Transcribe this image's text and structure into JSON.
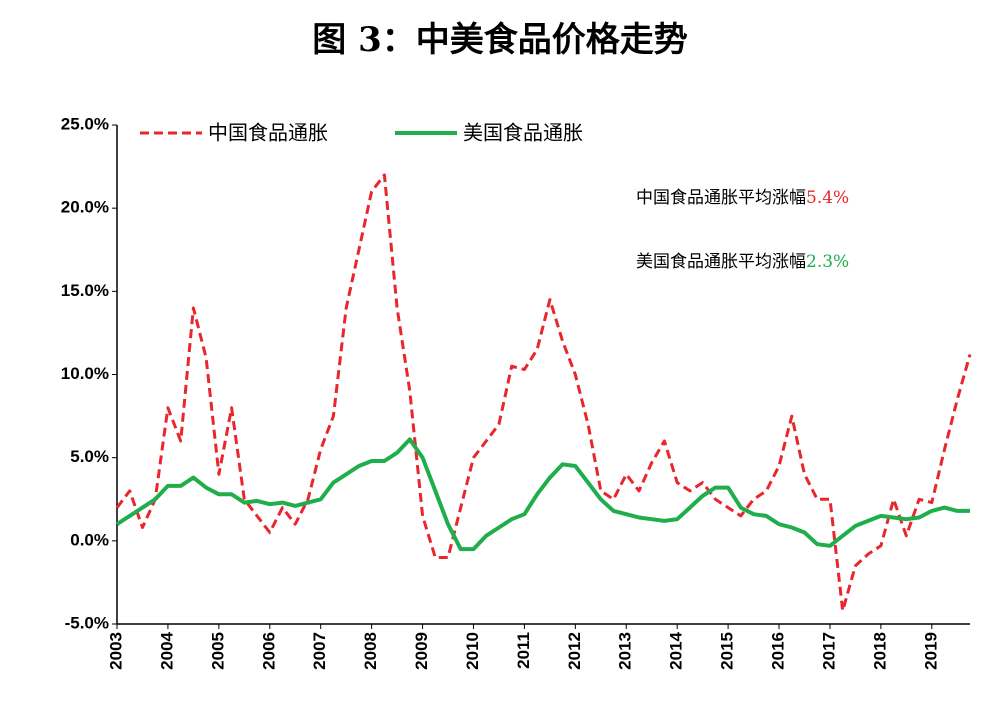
{
  "chart_data": {
    "type": "line",
    "title": "图 3：中美食品价格走势",
    "x": [
      2003,
      2003.25,
      2003.5,
      2003.75,
      2004,
      2004.25,
      2004.5,
      2004.75,
      2005,
      2005.25,
      2005.5,
      2005.75,
      2006,
      2006.25,
      2006.5,
      2006.75,
      2007,
      2007.25,
      2007.5,
      2007.75,
      2008,
      2008.25,
      2008.5,
      2008.75,
      2009,
      2009.25,
      2009.5,
      2009.75,
      2010,
      2010.25,
      2010.5,
      2010.75,
      2011,
      2011.25,
      2011.5,
      2011.75,
      2012,
      2012.25,
      2012.5,
      2012.75,
      2013,
      2013.25,
      2013.5,
      2013.75,
      2014,
      2014.25,
      2014.5,
      2014.75,
      2015,
      2015.25,
      2015.5,
      2015.75,
      2016,
      2016.25,
      2016.5,
      2016.75,
      2017,
      2017.25,
      2017.5,
      2017.75,
      2018,
      2018.25,
      2018.5,
      2018.75,
      2019,
      2019.25,
      2019.5,
      2019.75
    ],
    "series": [
      {
        "name": "中国食品通胀",
        "color": "#e8262b",
        "dash": true,
        "values": [
          2.0,
          3.0,
          0.8,
          2.5,
          8.0,
          6.0,
          14.0,
          11.0,
          4.0,
          8.0,
          2.5,
          1.5,
          0.5,
          2.0,
          1.0,
          2.5,
          5.5,
          7.5,
          14.0,
          17.5,
          21.0,
          22.0,
          14.0,
          9.0,
          1.5,
          -1.0,
          -1.0,
          2.0,
          5.0,
          6.0,
          7.0,
          10.5,
          10.3,
          11.5,
          14.5,
          12.0,
          10.0,
          7.0,
          3.0,
          2.5,
          4.0,
          3.0,
          4.7,
          6.0,
          3.5,
          3.0,
          3.5,
          2.5,
          2.0,
          1.5,
          2.5,
          3.0,
          4.5,
          7.5,
          4.0,
          2.5,
          2.5,
          -4.2,
          -1.5,
          -0.8,
          -0.3,
          2.5,
          0.3,
          2.5,
          2.3,
          5.5,
          8.5,
          11.2
        ]
      },
      {
        "name": "美国食品通胀",
        "color": "#1fae4b",
        "dash": false,
        "values": [
          1.0,
          1.5,
          2.0,
          2.5,
          3.3,
          3.3,
          3.8,
          3.2,
          2.8,
          2.8,
          2.3,
          2.4,
          2.2,
          2.3,
          2.1,
          2.3,
          2.5,
          3.5,
          4.0,
          4.5,
          4.8,
          4.8,
          5.3,
          6.1,
          5.0,
          3.0,
          1.0,
          -0.5,
          -0.5,
          0.3,
          0.8,
          1.3,
          1.6,
          2.8,
          3.8,
          4.6,
          4.5,
          3.5,
          2.5,
          1.8,
          1.6,
          1.4,
          1.3,
          1.2,
          1.3,
          2.0,
          2.7,
          3.2,
          3.2,
          2.0,
          1.6,
          1.5,
          1.0,
          0.8,
          0.5,
          -0.2,
          -0.3,
          0.3,
          0.9,
          1.2,
          1.5,
          1.4,
          1.3,
          1.4,
          1.8,
          2.0,
          1.8,
          1.8
        ]
      }
    ],
    "xlim": [
      2003,
      2019.75
    ],
    "xticks": [
      2003,
      2004,
      2005,
      2006,
      2007,
      2008,
      2009,
      2010,
      2011,
      2012,
      2013,
      2014,
      2015,
      2016,
      2017,
      2018,
      2019
    ],
    "ylim": [
      -5,
      25
    ],
    "yticks": [
      {
        "value": -5,
        "label": "-5.0%"
      },
      {
        "value": 0,
        "label": "0.0%"
      },
      {
        "value": 5,
        "label": "5.0%"
      },
      {
        "value": 10,
        "label": "10.0%"
      },
      {
        "value": 15,
        "label": "15.0%"
      },
      {
        "value": 20,
        "label": "20.0%"
      },
      {
        "value": 25,
        "label": "25.0%"
      }
    ],
    "annotations": [
      {
        "text": "中国食品通胀平均涨幅",
        "highlight": "5.4%",
        "color": "#e8262b"
      },
      {
        "text": "美国食品通胀平均涨幅",
        "highlight": "2.3%",
        "color": "#1fae4b"
      }
    ]
  }
}
